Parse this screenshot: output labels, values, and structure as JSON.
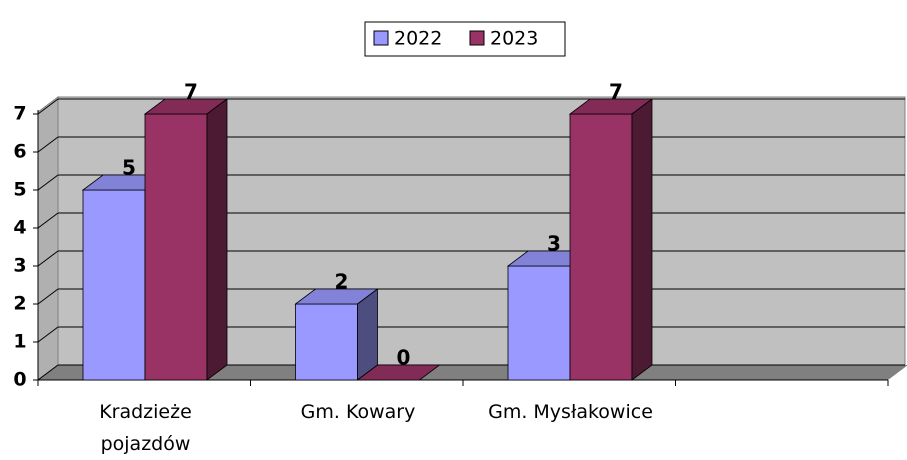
{
  "chart_data": {
    "type": "bar3d",
    "categories": [
      "Kradzieże\npojazdów",
      "Gm. Kowary",
      "Gm. Mysłakowice",
      null
    ],
    "series": [
      {
        "name": "2022",
        "color": "#9999ff",
        "values": [
          5,
          2,
          3,
          null
        ]
      },
      {
        "name": "2023",
        "color": "#993366",
        "values": [
          7,
          0,
          7,
          null
        ]
      }
    ],
    "ylim": [
      0,
      7
    ],
    "yticks": [
      0,
      1,
      2,
      3,
      4,
      5,
      6,
      7
    ],
    "grid": true,
    "legend": "top"
  }
}
